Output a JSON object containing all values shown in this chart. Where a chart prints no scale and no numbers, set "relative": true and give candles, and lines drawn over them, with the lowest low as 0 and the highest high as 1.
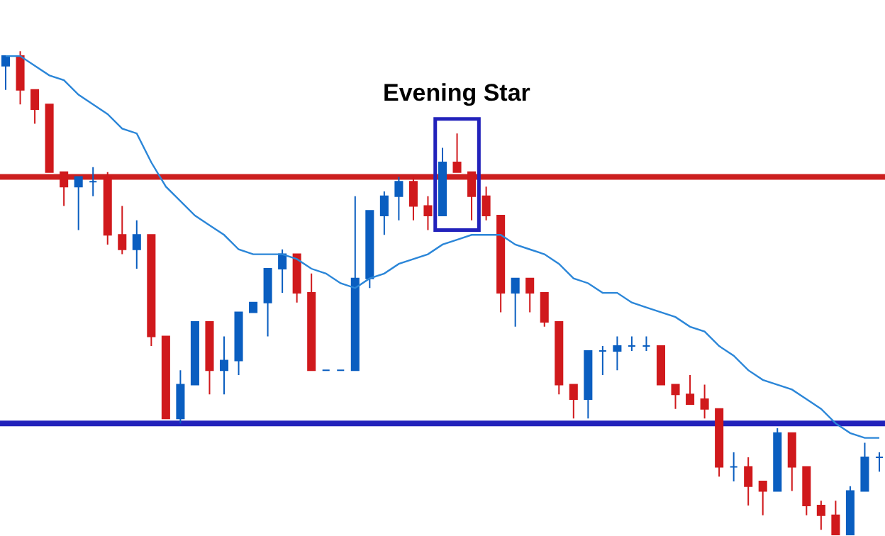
{
  "chart_data": {
    "type": "candlestick",
    "relative": true,
    "categories": [
      null,
      null,
      null,
      null,
      null,
      null,
      null,
      null,
      null,
      null,
      null,
      null,
      null,
      null,
      null,
      null,
      null,
      null,
      null,
      null,
      null,
      null,
      null,
      null,
      null,
      null,
      null,
      null,
      null,
      null,
      null,
      null,
      null,
      null,
      null,
      null,
      null,
      null,
      null,
      null,
      null,
      null,
      null,
      null,
      null,
      null,
      null,
      null,
      null,
      null,
      null,
      null,
      null,
      null,
      null,
      null,
      null,
      null,
      null,
      null,
      null
    ],
    "ohlc": [
      [
        0.97,
        0.99,
        0.92,
        0.99
      ],
      [
        0.99,
        1.0,
        0.89,
        0.92
      ],
      [
        0.92,
        0.92,
        0.85,
        0.88
      ],
      [
        0.89,
        0.89,
        0.75,
        0.75
      ],
      [
        0.75,
        0.75,
        0.68,
        0.72
      ],
      [
        0.72,
        0.74,
        0.63,
        0.74
      ],
      [
        0.73,
        0.76,
        0.7,
        0.73
      ],
      [
        0.74,
        0.75,
        0.6,
        0.62
      ],
      [
        0.62,
        0.68,
        0.58,
        0.59
      ],
      [
        0.59,
        0.65,
        0.55,
        0.62
      ],
      [
        0.62,
        0.62,
        0.39,
        0.41
      ],
      [
        0.41,
        0.41,
        0.24,
        0.24
      ],
      [
        0.24,
        0.34,
        0.23,
        0.31
      ],
      [
        0.31,
        0.44,
        0.31,
        0.44
      ],
      [
        0.44,
        0.44,
        0.29,
        0.34
      ],
      [
        0.34,
        0.41,
        0.29,
        0.36
      ],
      [
        0.36,
        0.46,
        0.33,
        0.46
      ],
      [
        0.46,
        0.48,
        0.46,
        0.48
      ],
      [
        0.48,
        0.55,
        0.41,
        0.55
      ],
      [
        0.55,
        0.59,
        0.5,
        0.58
      ],
      [
        0.58,
        0.58,
        0.48,
        0.5
      ],
      [
        0.5,
        0.54,
        0.34,
        0.34
      ],
      [
        0.34,
        0.34,
        0.34,
        0.34
      ],
      [
        0.34,
        0.34,
        0.34,
        0.34
      ],
      [
        0.34,
        0.7,
        0.34,
        0.53
      ],
      [
        0.53,
        0.67,
        0.51,
        0.67
      ],
      [
        0.66,
        0.71,
        0.62,
        0.7
      ],
      [
        0.7,
        0.74,
        0.65,
        0.73
      ],
      [
        0.73,
        0.74,
        0.65,
        0.68
      ],
      [
        0.68,
        0.7,
        0.63,
        0.66
      ],
      [
        0.66,
        0.8,
        0.66,
        0.77
      ],
      [
        0.77,
        0.83,
        0.75,
        0.75
      ],
      [
        0.75,
        0.75,
        0.65,
        0.7
      ],
      [
        0.7,
        0.72,
        0.65,
        0.66
      ],
      [
        0.66,
        0.66,
        0.46,
        0.5
      ],
      [
        0.5,
        0.53,
        0.43,
        0.53
      ],
      [
        0.53,
        0.53,
        0.46,
        0.5
      ],
      [
        0.5,
        0.5,
        0.43,
        0.44
      ],
      [
        0.44,
        0.44,
        0.29,
        0.31
      ],
      [
        0.31,
        0.31,
        0.24,
        0.28
      ],
      [
        0.28,
        0.38,
        0.24,
        0.38
      ],
      [
        0.38,
        0.39,
        0.33,
        0.38
      ],
      [
        0.38,
        0.41,
        0.34,
        0.39
      ],
      [
        0.39,
        0.41,
        0.38,
        0.39
      ],
      [
        0.39,
        0.41,
        0.38,
        0.39
      ],
      [
        0.39,
        0.39,
        0.31,
        0.31
      ],
      [
        0.31,
        0.31,
        0.26,
        0.29
      ],
      [
        0.29,
        0.33,
        0.27,
        0.27
      ],
      [
        0.28,
        0.31,
        0.24,
        0.26
      ],
      [
        0.26,
        0.26,
        0.12,
        0.14
      ],
      [
        0.14,
        0.17,
        0.11,
        0.14
      ],
      [
        0.14,
        0.16,
        0.06,
        0.1
      ],
      [
        0.11,
        0.11,
        0.04,
        0.09
      ],
      [
        0.09,
        0.22,
        0.09,
        0.21
      ],
      [
        0.21,
        0.21,
        0.09,
        0.14
      ],
      [
        0.14,
        0.14,
        0.04,
        0.06
      ],
      [
        0.06,
        0.07,
        0.01,
        0.04
      ],
      [
        0.04,
        0.07,
        0.0,
        0.0
      ],
      [
        0.0,
        0.1,
        0.0,
        0.09
      ],
      [
        0.09,
        0.19,
        0.09,
        0.16
      ],
      [
        0.16,
        0.17,
        0.13,
        0.16
      ]
    ],
    "colors": [
      "#0a5ec0",
      "#d0191c",
      "#d0191c",
      "#d0191c",
      "#d0191c",
      "#0a5ec0",
      "#0a5ec0",
      "#d0191c",
      "#d0191c",
      "#0a5ec0",
      "#d0191c",
      "#d0191c",
      "#0a5ec0",
      "#0a5ec0",
      "#d0191c",
      "#0a5ec0",
      "#0a5ec0",
      "#0a5ec0",
      "#0a5ec0",
      "#0a5ec0",
      "#d0191c",
      "#d0191c",
      "#0a5ec0",
      "#0a5ec0",
      "#0a5ec0",
      "#0a5ec0",
      "#0a5ec0",
      "#0a5ec0",
      "#d0191c",
      "#d0191c",
      "#0a5ec0",
      "#d0191c",
      "#d0191c",
      "#d0191c",
      "#d0191c",
      "#0a5ec0",
      "#d0191c",
      "#d0191c",
      "#d0191c",
      "#d0191c",
      "#0a5ec0",
      "#0a5ec0",
      "#0a5ec0",
      "#0a5ec0",
      "#0a5ec0",
      "#d0191c",
      "#d0191c",
      "#d0191c",
      "#d0191c",
      "#d0191c",
      "#0a5ec0",
      "#d0191c",
      "#d0191c",
      "#0a5ec0",
      "#d0191c",
      "#d0191c",
      "#d0191c",
      "#d0191c",
      "#0a5ec0",
      "#0a5ec0",
      "#0a5ec0"
    ],
    "series": [
      {
        "type": "line",
        "color": "#2b86d8",
        "values": [
          0.99,
          0.99,
          0.97,
          0.95,
          0.94,
          0.91,
          0.89,
          0.87,
          0.84,
          0.83,
          0.77,
          0.72,
          0.69,
          0.66,
          0.64,
          0.62,
          0.59,
          0.58,
          0.58,
          0.58,
          0.57,
          0.55,
          0.54,
          0.52,
          0.51,
          0.53,
          0.54,
          0.56,
          0.57,
          0.58,
          0.6,
          0.61,
          0.62,
          0.62,
          0.62,
          0.6,
          0.59,
          0.58,
          0.56,
          0.53,
          0.52,
          0.5,
          0.5,
          0.48,
          0.47,
          0.46,
          0.45,
          0.43,
          0.42,
          0.39,
          0.37,
          0.34,
          0.32,
          0.31,
          0.3,
          0.28,
          0.26,
          0.23,
          0.21,
          0.2,
          0.2
        ]
      }
    ],
    "marker": "none",
    "ref_lines": [
      {
        "axis": "y",
        "value": 0.74,
        "color": "#cc1f1f"
      },
      {
        "axis": "y",
        "value": 0.23,
        "color": "#2222bb"
      }
    ],
    "annotations": [
      "Evening Star"
    ]
  }
}
